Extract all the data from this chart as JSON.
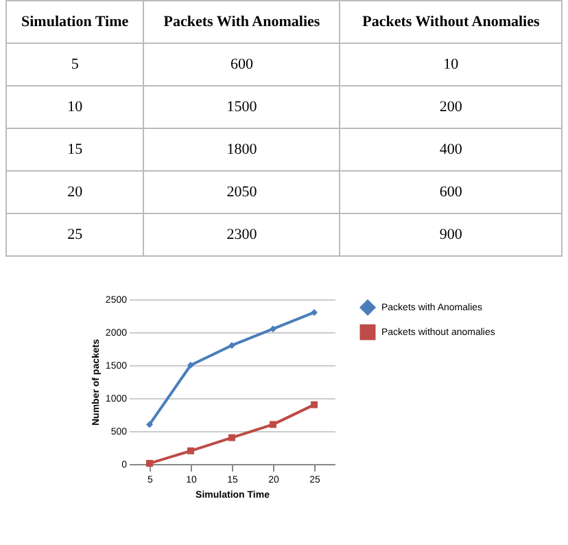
{
  "chart_data": {
    "type": "line",
    "xlabel": "Simulation Time",
    "ylabel": "Number of packets",
    "categories": [
      "5",
      "10",
      "15",
      "20",
      "25"
    ],
    "series": [
      {
        "name": "Packets with Anomalies",
        "color": "#4a7ebb",
        "marker": "diamond",
        "values": [
          600,
          1500,
          1800,
          2050,
          2300
        ]
      },
      {
        "name": "Packets without anomalies",
        "color": "#be4b48",
        "marker": "square",
        "values": [
          10,
          200,
          400,
          600,
          900
        ]
      }
    ],
    "ylim": [
      0,
      2500
    ],
    "yticks": [
      0,
      500,
      1000,
      1500,
      2000,
      2500
    ],
    "grid": "y",
    "legend": "right",
    "line_style": "solid",
    "annotations": [
      "Simulation Time",
      "Packets With Anomalies",
      "Packets Without Anomalies",
      "600",
      "10",
      "1500",
      "200",
      "1800",
      "400",
      "2050",
      "600",
      "2300",
      "900"
    ]
  }
}
